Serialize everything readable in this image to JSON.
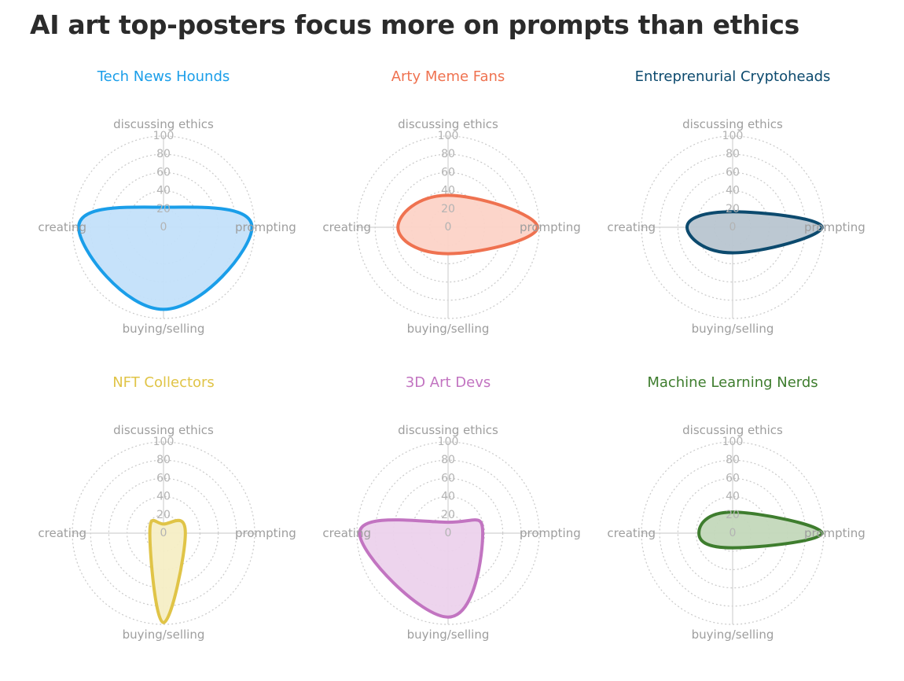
{
  "title": "AI art top-posters focus more on prompts than ethics",
  "axes": [
    "discussing ethics",
    "prompting",
    "buying/selling",
    "creating"
  ],
  "ticks": [
    0,
    20,
    40,
    60,
    80,
    100
  ],
  "chart_data": [
    {
      "type": "radar",
      "title": "Tech News Hounds",
      "color": "#1a9ee9",
      "fill": "#c3e0fa",
      "axes": [
        "discussing ethics",
        "prompting",
        "buying/selling",
        "creating"
      ],
      "values": [
        22,
        97,
        90,
        93
      ],
      "rlim": [
        0,
        100
      ]
    },
    {
      "type": "radar",
      "title": "Arty Meme Fans",
      "color": "#ef7250",
      "fill": "#fcd3c7",
      "axes": [
        "discussing ethics",
        "prompting",
        "buying/selling",
        "creating"
      ],
      "values": [
        35,
        98,
        29,
        55
      ],
      "rlim": [
        0,
        100
      ]
    },
    {
      "type": "radar",
      "title": "Entreprenurial Cryptoheads",
      "color": "#0c4a6e",
      "fill": "#b8c5d0",
      "axes": [
        "discussing ethics",
        "prompting",
        "buying/selling",
        "creating"
      ],
      "values": [
        17,
        98,
        28,
        50
      ],
      "rlim": [
        0,
        100
      ]
    },
    {
      "type": "radar",
      "title": "NFT Collectors",
      "color": "#e0c447",
      "fill": "#f6eec5",
      "axes": [
        "discussing ethics",
        "prompting",
        "buying/selling",
        "creating"
      ],
      "values": [
        10,
        24,
        98,
        15
      ],
      "rlim": [
        0,
        100
      ]
    },
    {
      "type": "radar",
      "title": "3D Art Devs",
      "color": "#c274c1",
      "fill": "#ecd2ec",
      "axes": [
        "discussing ethics",
        "prompting",
        "buying/selling",
        "creating"
      ],
      "values": [
        12,
        38,
        92,
        97
      ],
      "rlim": [
        0,
        100
      ]
    },
    {
      "type": "radar",
      "title": "Machine Learning Nerds",
      "color": "#3e7d2e",
      "fill": "#c3d8bb",
      "axes": [
        "discussing ethics",
        "prompting",
        "buying/selling",
        "creating"
      ],
      "values": [
        23,
        98,
        16,
        37
      ],
      "rlim": [
        0,
        100
      ]
    }
  ]
}
